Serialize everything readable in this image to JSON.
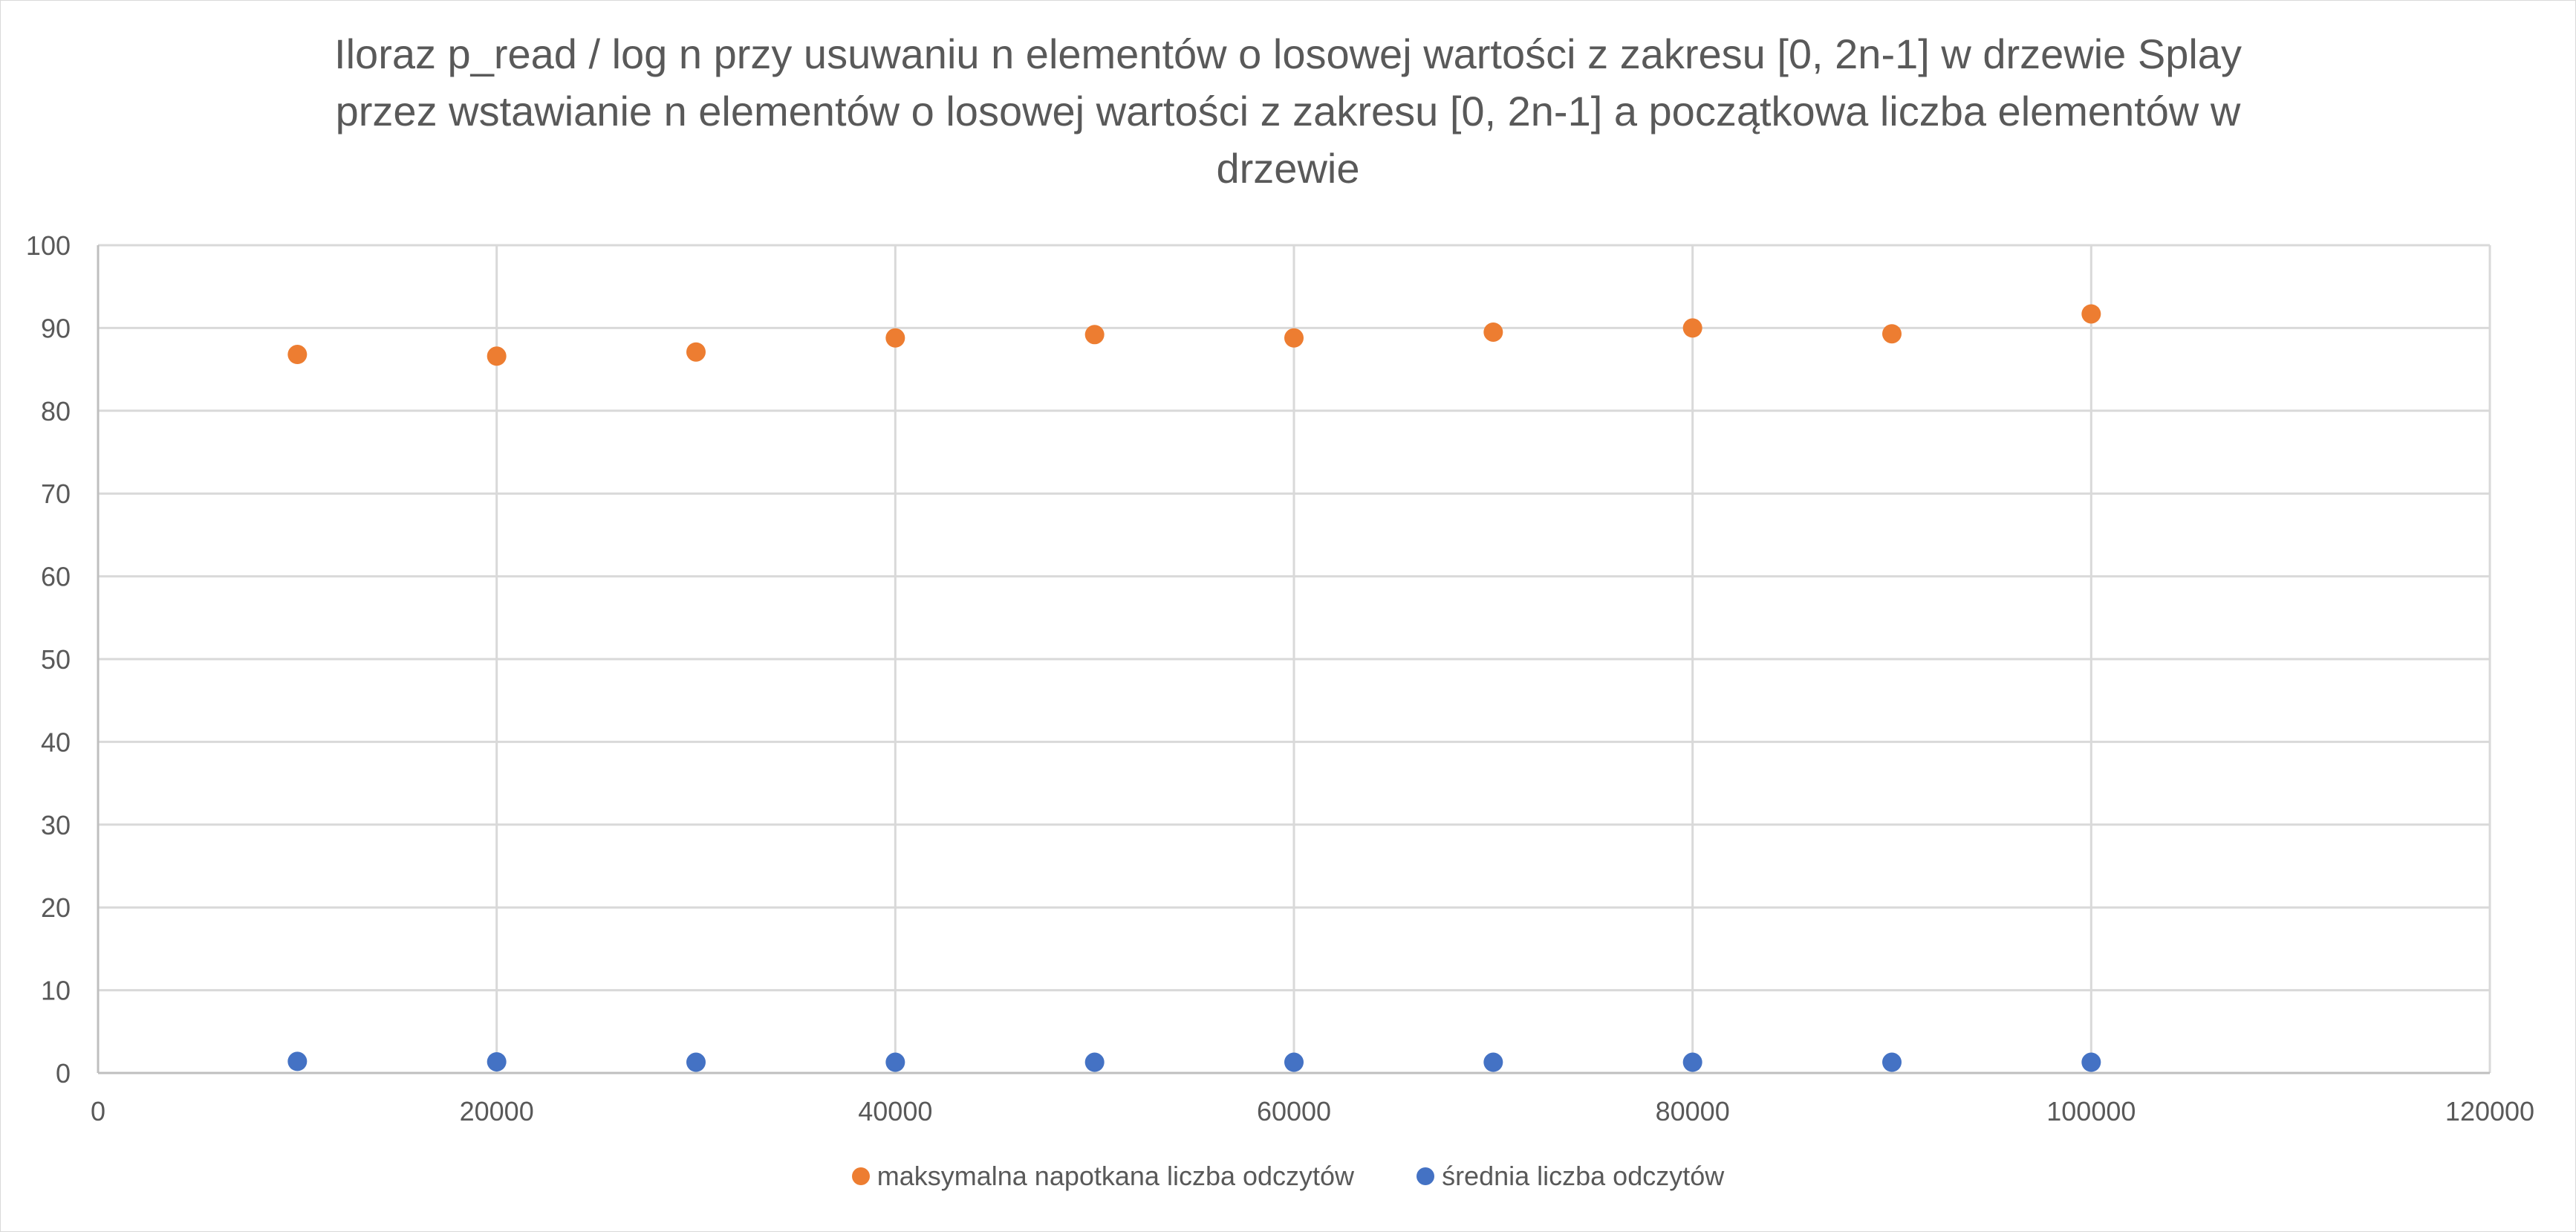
{
  "chart_data": {
    "type": "scatter",
    "title_lines": [
      "Iloraz p_read / log n przy usuwaniu n elementów o losowej wartości z zakresu [0, 2n-1] w drzewie Splay",
      "przez wstawianie n elementów o losowej wartości z zakresu [0, 2n-1] a początkowa liczba elementów w",
      "drzewie"
    ],
    "xlabel": "",
    "ylabel": "",
    "xlim": [
      0,
      120000
    ],
    "ylim": [
      0,
      100
    ],
    "x_ticks": [
      "0",
      "20000",
      "40000",
      "60000",
      "80000",
      "100000",
      "120000"
    ],
    "y_ticks": [
      "0",
      "10",
      "20",
      "30",
      "40",
      "50",
      "60",
      "70",
      "80",
      "90",
      "100"
    ],
    "grid": true,
    "legend_position": "bottom",
    "x": [
      10000,
      20000,
      30000,
      40000,
      50000,
      60000,
      70000,
      80000,
      90000,
      100000
    ],
    "series": [
      {
        "name": "maksymalna napotkana liczba odczytów",
        "color": "#ED7D31",
        "values": [
          86.8,
          86.6,
          87.1,
          88.8,
          89.2,
          88.8,
          89.5,
          90.0,
          89.3,
          91.7
        ]
      },
      {
        "name": "średnia liczba odczytów",
        "color": "#4472C4",
        "values": [
          1.4,
          1.35,
          1.3,
          1.3,
          1.3,
          1.3,
          1.3,
          1.3,
          1.3,
          1.3
        ]
      }
    ]
  }
}
